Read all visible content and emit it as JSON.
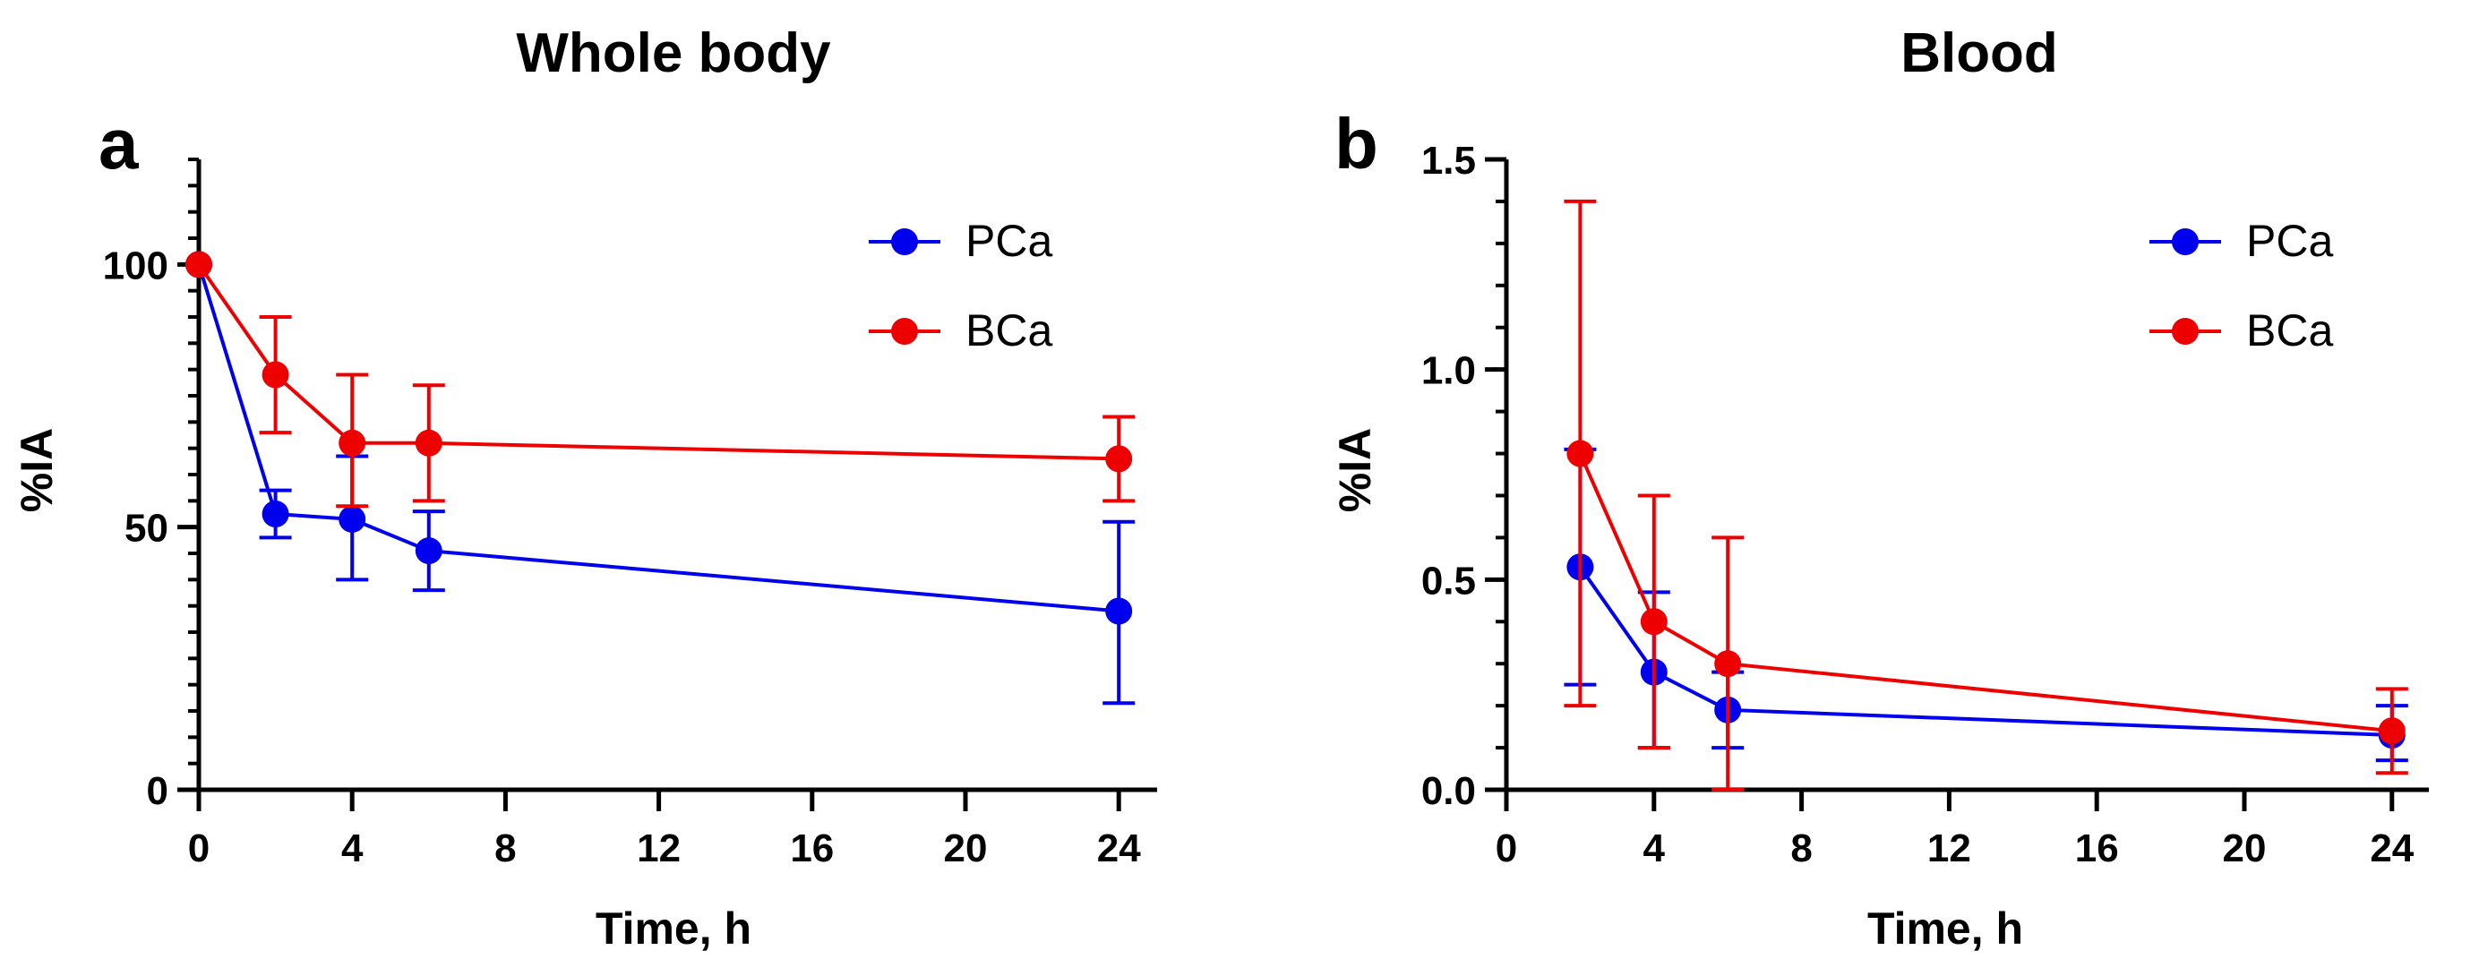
{
  "colors": {
    "PCa": "#0000ee",
    "BCa": "#ee0000",
    "axis": "#000000"
  },
  "chart_data": [
    {
      "panel_letter": "a",
      "type": "line",
      "title": "Whole body",
      "xlabel": "Time, h",
      "ylabel": "%IA",
      "xlim": [
        0,
        25
      ],
      "ylim": [
        0,
        120
      ],
      "xticks": [
        0,
        4,
        8,
        12,
        16,
        20,
        24
      ],
      "yticks": [
        0,
        50,
        100
      ],
      "yminor_step": 5,
      "legend_position": "top-right",
      "series": [
        {
          "name": "PCa",
          "color_key": "PCa",
          "x": [
            0,
            2,
            4,
            6,
            24
          ],
          "y": [
            100,
            52.5,
            51.5,
            45.5,
            34
          ],
          "err_low": [
            0,
            48,
            40,
            38,
            16.5
          ],
          "err_high": [
            0,
            57,
            63.5,
            53,
            51
          ]
        },
        {
          "name": "BCa",
          "color_key": "BCa",
          "x": [
            0,
            2,
            4,
            6,
            24
          ],
          "y": [
            100,
            79,
            66,
            66,
            63
          ],
          "err_low": [
            0,
            68,
            54,
            55,
            55
          ],
          "err_high": [
            0,
            90,
            79,
            77,
            71
          ]
        }
      ]
    },
    {
      "panel_letter": "b",
      "type": "line",
      "title": "Blood",
      "xlabel": "Time, h",
      "ylabel": "%IA",
      "xlim": [
        0,
        25
      ],
      "ylim": [
        0,
        1.5
      ],
      "xticks": [
        0,
        4,
        8,
        12,
        16,
        20,
        24
      ],
      "yticks": [
        0.0,
        0.5,
        1.0,
        1.5
      ],
      "ytick_labels": [
        "0.0",
        "0.5",
        "1.0",
        "1.5"
      ],
      "yminor_step": 0.1,
      "legend_position": "top-right",
      "series": [
        {
          "name": "PCa",
          "color_key": "PCa",
          "x": [
            2,
            4,
            6,
            24
          ],
          "y": [
            0.53,
            0.28,
            0.19,
            0.13
          ],
          "err_low": [
            0.25,
            0.1,
            0.1,
            0.07
          ],
          "err_high": [
            0.81,
            0.47,
            0.28,
            0.2
          ]
        },
        {
          "name": "BCa",
          "color_key": "BCa",
          "x": [
            2,
            4,
            6,
            24
          ],
          "y": [
            0.8,
            0.4,
            0.3,
            0.14
          ],
          "err_low": [
            0.2,
            0.1,
            0.0,
            0.04
          ],
          "err_high": [
            1.4,
            0.7,
            0.6,
            0.24
          ]
        }
      ]
    }
  ]
}
